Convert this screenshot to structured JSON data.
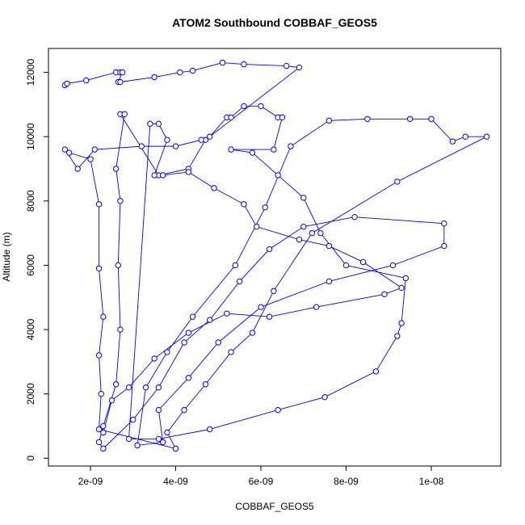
{
  "chart_data": {
    "type": "line",
    "title": "ATOM2 Southbound COBBAF_GEOS5",
    "x_label": "COBBAF_GEOS5",
    "y_label": "Altitude (m)",
    "color": "#0000ff",
    "markers": true,
    "xlim": [
      1.014e-09,
      1.163e-08
    ],
    "ylim": [
      -243,
      12742
    ],
    "xticks": [
      {
        "value": 2e-09,
        "label": "2e-09"
      },
      {
        "value": 4e-09,
        "label": "4e-09"
      },
      {
        "value": 6e-09,
        "label": "6e-09"
      },
      {
        "value": 8e-09,
        "label": "8e-09"
      },
      {
        "value": 1e-08,
        "label": "1e-08"
      }
    ],
    "yticks": [
      0,
      2000,
      4000,
      6000,
      8000,
      10000,
      12000
    ],
    "x": [
      1.4e-09,
      1.45e-09,
      1.9e-09,
      2.6e-09,
      2.7e-09,
      2.75e-09,
      2.65e-09,
      2.7e-09,
      3.5e-09,
      4.1e-09,
      4.4e-09,
      5.1e-09,
      5.6e-09,
      6.6e-09,
      6.9e-09,
      4.7e-09,
      4.3e-09,
      3.6e-09,
      2.7e-09,
      2.8e-09,
      2.6e-09,
      2.7e-09,
      2.65e-09,
      2.7e-09,
      2.6e-09,
      2.3e-09,
      2.2e-09,
      2.3e-09,
      3e-09,
      3.6e-09,
      4.2e-09,
      4.8e-09,
      5.5e-09,
      6.2e-09,
      7e-09,
      8.2e-09,
      1.03e-08,
      1.03e-08,
      9.1e-09,
      7.6e-09,
      6e-09,
      5e-09,
      4.3e-09,
      3.6e-09,
      3.7e-09,
      3.1e-09,
      3.3e-09,
      3.8e-09,
      4.4e-09,
      5.4e-09,
      6.1e-09,
      6.7e-09,
      7.6e-09,
      8.5e-09,
      9.5e-09,
      1e-08,
      1.05e-08,
      1.08e-08,
      1.13e-08,
      9.2e-09,
      7.2e-09,
      6.3e-09,
      5.8e-09,
      5.3e-09,
      4.7e-09,
      4.2e-09,
      3.8e-09,
      4e-09,
      2.2e-09,
      2.25e-09,
      2.2e-09,
      2.3e-09,
      2.2e-09,
      2.2e-09,
      2e-09,
      1.5e-09,
      1.4e-09,
      1.7e-09,
      2.1e-09,
      3.2e-09,
      4e-09,
      4.6e-09,
      4.8e-09,
      5.2e-09,
      5.3e-09,
      5.6e-09,
      6e-09,
      6.4e-09,
      6.5e-09,
      6.3e-09,
      5.3e-09,
      5.8e-09,
      6.4e-09,
      7e-09,
      7.4e-09,
      8e-09,
      9.4e-09,
      9.3e-09,
      9.2e-09,
      8.7e-09,
      7.5e-09,
      6.4e-09,
      4.8e-09,
      3.6e-09,
      2.9e-09,
      3.4e-09,
      3.6e-09,
      3.8e-09,
      3.5e-09,
      3.7e-09,
      4.3e-09,
      4.9e-09,
      5.6e-09,
      5.9e-09,
      6.9e-09,
      7.6e-09,
      8.4e-09,
      9.3e-09,
      8.9e-09,
      7.3e-09,
      6.2e-09,
      5.2e-09,
      4.3e-09,
      3.5e-09,
      2.9e-09,
      2.5e-09,
      2.3e-09
    ],
    "values": [
      11600,
      11650,
      11750,
      12000,
      12000,
      12000,
      11700,
      11700,
      11850,
      12000,
      12050,
      12300,
      12250,
      12200,
      12150,
      9900,
      9000,
      8800,
      10700,
      10700,
      9000,
      8000,
      6000,
      4000,
      2300,
      1000,
      500,
      300,
      1200,
      2200,
      3600,
      4300,
      5500,
      6500,
      7200,
      7500,
      7300,
      6600,
      6000,
      5500,
      4700,
      3600,
      2500,
      1500,
      500,
      400,
      2200,
      3300,
      4400,
      6000,
      7800,
      9700,
      10500,
      10550,
      10550,
      10550,
      9850,
      10000,
      10000,
      8600,
      7000,
      5200,
      3900,
      3300,
      2300,
      1500,
      800,
      300,
      900,
      2000,
      3200,
      4400,
      5900,
      7900,
      9300,
      9500,
      9600,
      9000,
      9600,
      9700,
      9700,
      9900,
      10000,
      10600,
      10600,
      10950,
      10950,
      10600,
      10600,
      9600,
      9600,
      9500,
      8800,
      8100,
      7000,
      6000,
      5600,
      4200,
      3800,
      2700,
      1900,
      1500,
      900,
      600,
      600,
      10400,
      10400,
      9900,
      8800,
      8800,
      8900,
      8400,
      7900,
      7200,
      6800,
      6600,
      6100,
      5300,
      5100,
      4700,
      4400,
      4500,
      3900,
      3100,
      2200,
      1800,
      800
    ]
  }
}
